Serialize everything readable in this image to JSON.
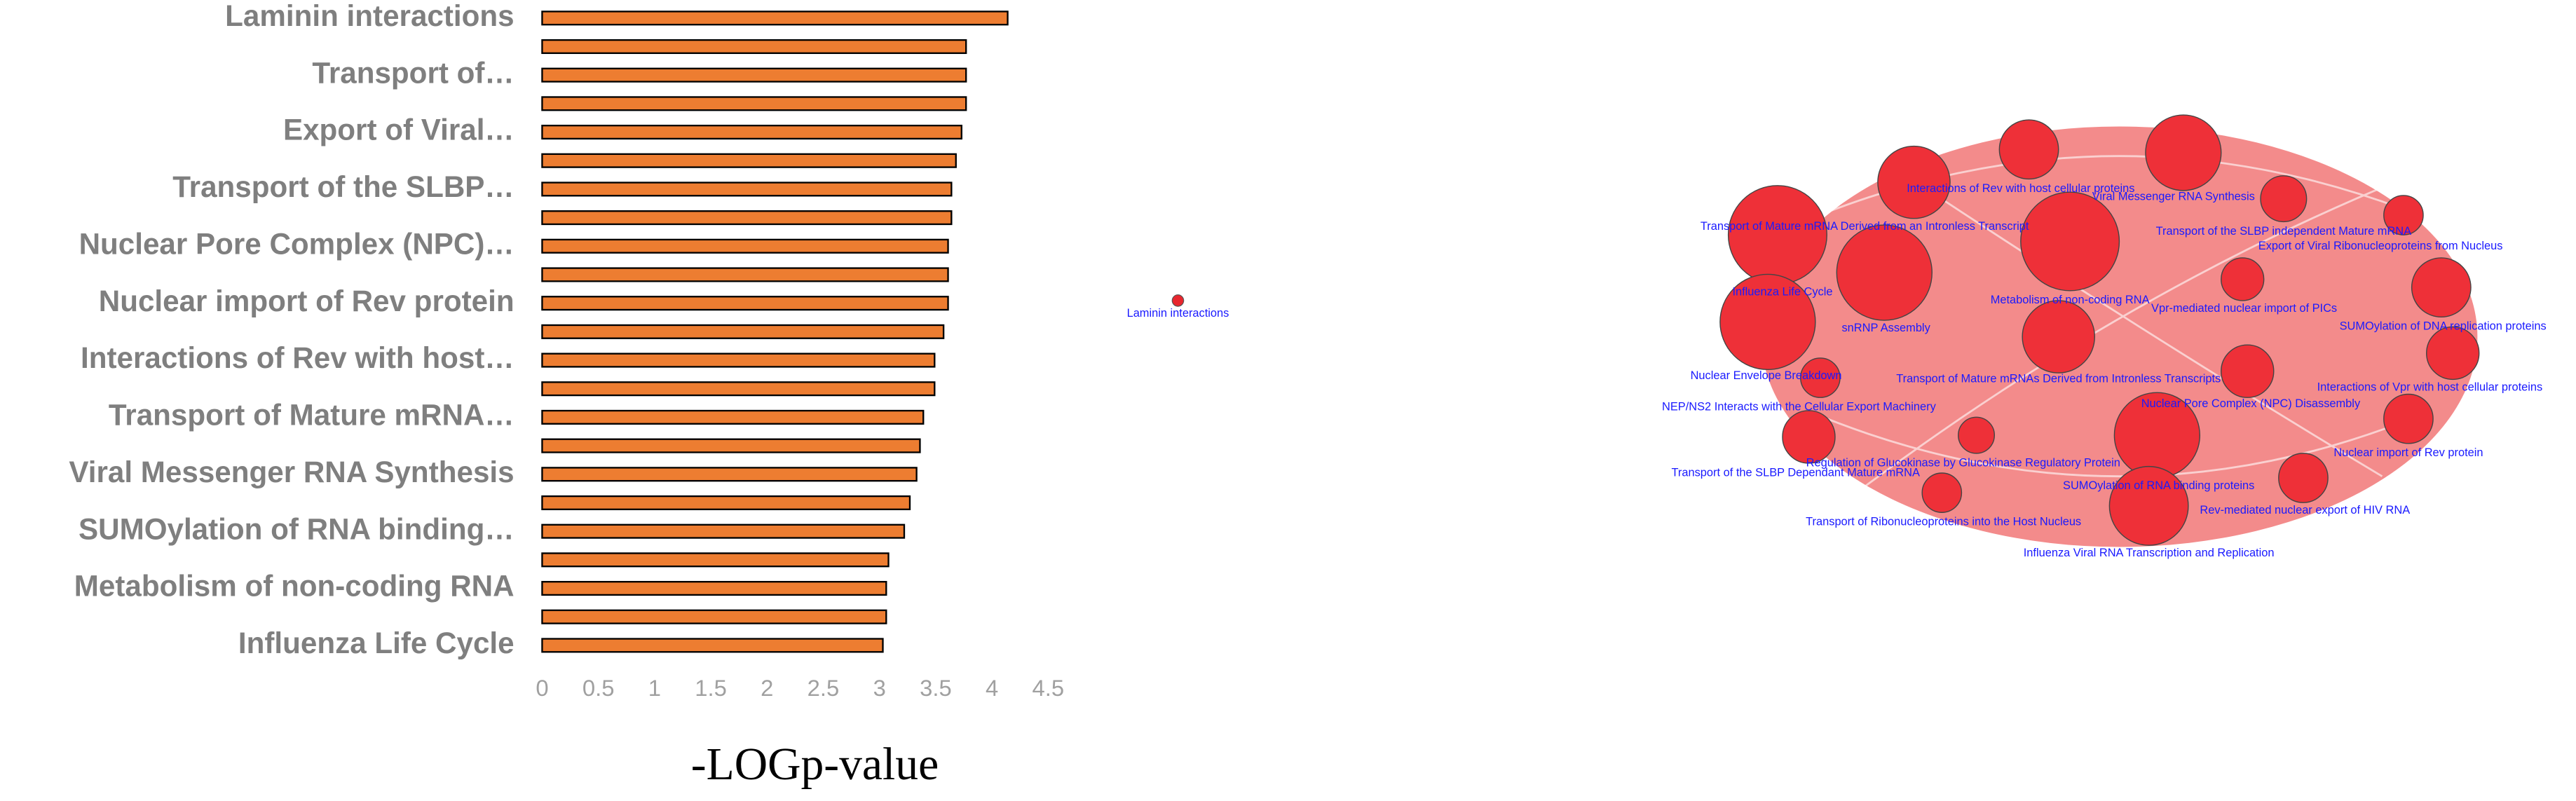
{
  "chart_data": {
    "type": "bar",
    "orientation": "horizontal",
    "categories": [
      "Laminin interactions",
      null,
      "Transport of…",
      null,
      "Export of Viral…",
      null,
      "Transport of the SLBP…",
      null,
      "Nuclear Pore Complex (NPC)…",
      null,
      "Nuclear import of Rev protein",
      null,
      "Interactions of Rev with host…",
      null,
      "Transport of Mature mRNA…",
      null,
      "Viral Messenger RNA Synthesis",
      null,
      "SUMOylation of RNA binding…",
      null,
      "Metabolism of non-coding RNA",
      null,
      "Influenza Life Cycle"
    ],
    "values": [
      4.14,
      3.77,
      3.77,
      3.77,
      3.73,
      3.68,
      3.64,
      3.64,
      3.61,
      3.61,
      3.61,
      3.57,
      3.49,
      3.49,
      3.39,
      3.36,
      3.33,
      3.27,
      3.22,
      3.08,
      3.06,
      3.06,
      3.03
    ],
    "color": "#ed7d31",
    "xlim": [
      0,
      4.5
    ],
    "xticks": [
      0,
      0.5,
      1,
      1.5,
      2,
      2.5,
      3,
      3.5,
      4,
      4.5
    ],
    "xlabel": "-LOGp-value"
  },
  "single_node": {
    "label": "Laminin interactions"
  },
  "network": {
    "nodes": [
      {
        "label": "Transport of Mature mRNA Derived from an Intronless Transcript"
      },
      {
        "label": "snRNP Assembly"
      },
      {
        "label": "Influenza Life Cycle"
      },
      {
        "label": "Interactions of Rev with host cellular proteins"
      },
      {
        "label": "Viral Messenger RNA Synthesis"
      },
      {
        "label": "Transport of the SLBP independent Mature mRNA"
      },
      {
        "label": "Metabolism of non-coding RNA"
      },
      {
        "label": "Export of Viral Ribonucleoproteins from Nucleus"
      },
      {
        "label": "Vpr-mediated nuclear import of PICs"
      },
      {
        "label": "SUMOylation of DNA replication proteins"
      },
      {
        "label": "Transport of Mature mRNAs Derived from Intronless Transcripts"
      },
      {
        "label": "Interactions of Vpr with host cellular proteins"
      },
      {
        "label": "Nuclear Envelope Breakdown"
      },
      {
        "label": "Nuclear Pore Complex (NPC) Disassembly"
      },
      {
        "label": "Nuclear import of Rev protein"
      },
      {
        "label": "NEP/NS2 Interacts with the Cellular Export Machinery"
      },
      {
        "label": "Regulation of Glucokinase by Glucokinase Regulatory Protein"
      },
      {
        "label": "Transport of the SLBP Dependant Mature mRNA"
      },
      {
        "label": "SUMOylation of RNA binding proteins"
      },
      {
        "label": "Rev-mediated nuclear export of HIV RNA"
      },
      {
        "label": "Transport of Ribonucleoproteins into the Host Nucleus"
      },
      {
        "label": "Influenza Viral RNA Transcription and Replication"
      }
    ]
  }
}
